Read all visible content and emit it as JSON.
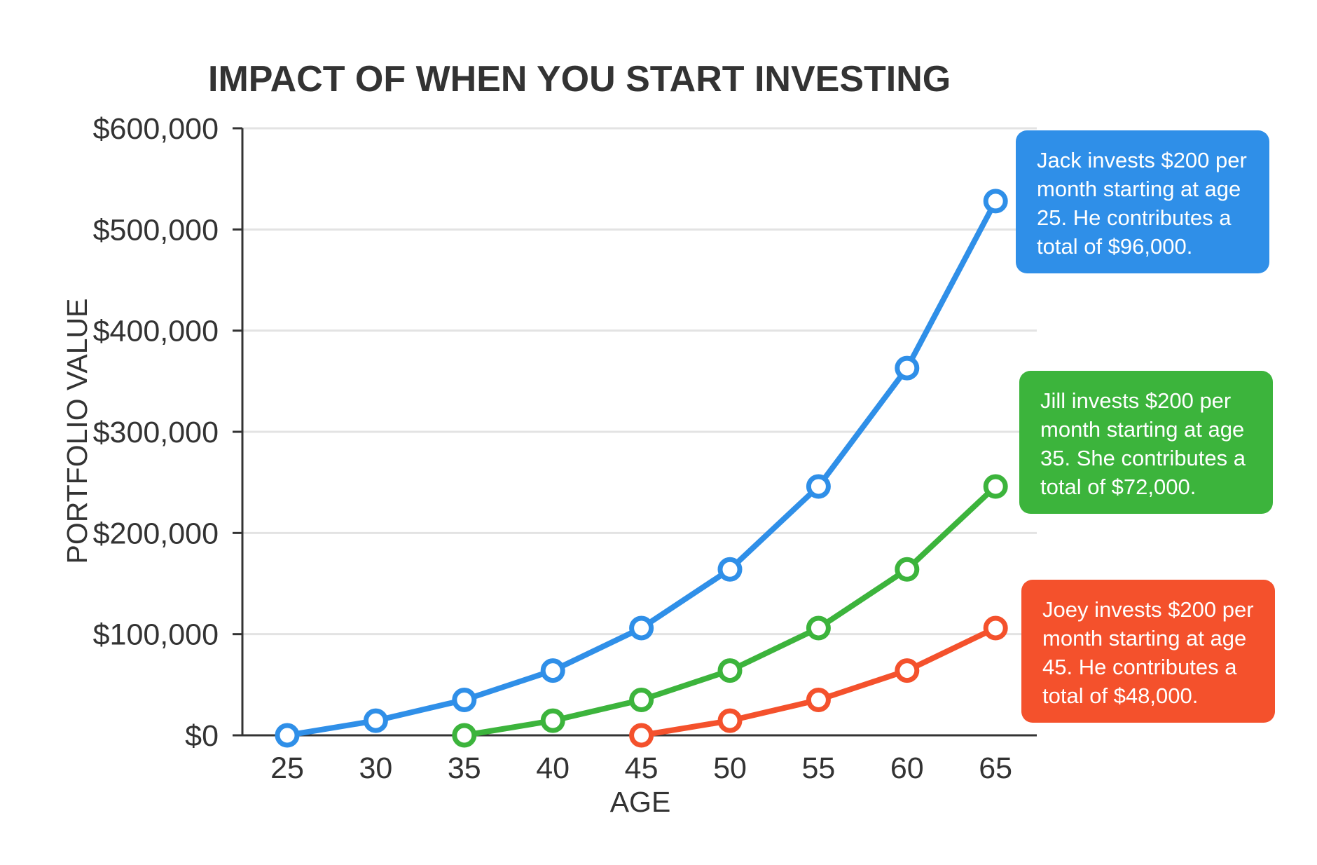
{
  "chart_data": {
    "type": "line",
    "title": "IMPACT OF WHEN YOU START INVESTING",
    "xlabel": "AGE",
    "ylabel": "PORTFOLIO VALUE",
    "x": [
      25,
      30,
      35,
      40,
      45,
      50,
      55,
      60,
      65
    ],
    "x_tick_labels": [
      "25",
      "30",
      "35",
      "40",
      "45",
      "50",
      "55",
      "60",
      "65"
    ],
    "ylim": [
      0,
      600000
    ],
    "y_ticks": [
      0,
      100000,
      200000,
      300000,
      400000,
      500000,
      600000
    ],
    "y_tick_labels": [
      "$0",
      "$100,000",
      "$200,000",
      "$300,000",
      "$400,000",
      "$500,000",
      "$600,000"
    ],
    "grid": true,
    "series": [
      {
        "name": "Jack",
        "color": "#2f8fe8",
        "x": [
          25,
          30,
          35,
          40,
          45,
          50,
          55,
          60,
          65
        ],
        "values": [
          0,
          14500,
          35000,
          64000,
          106000,
          164000,
          246000,
          363000,
          528000
        ],
        "note": "Jack invests $200 per month starting at age 25. He contributes a total of $96,000."
      },
      {
        "name": "Jill",
        "color": "#3cb43c",
        "x": [
          35,
          40,
          45,
          50,
          55,
          60,
          65
        ],
        "values": [
          0,
          14500,
          35000,
          64000,
          106000,
          164000,
          246000
        ],
        "note": "Jill invests $200 per month starting at age 35. She contributes a total of $72,000."
      },
      {
        "name": "Joey",
        "color": "#f4512c",
        "x": [
          45,
          50,
          55,
          60,
          65
        ],
        "values": [
          0,
          14500,
          35000,
          64000,
          106000
        ],
        "note": "Joey invests $200 per month starting at age 45. He contributes a total of $48,000."
      }
    ]
  }
}
